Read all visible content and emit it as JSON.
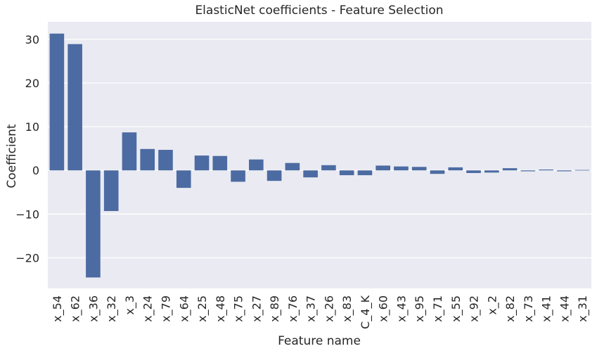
{
  "chart_data": {
    "type": "bar",
    "title": "ElasticNet coefficients - Feature Selection",
    "xlabel": "Feature name",
    "ylabel": "Coefficient",
    "ylim": [
      -27,
      34
    ],
    "yticks": [
      -20,
      -10,
      0,
      10,
      20,
      30
    ],
    "ytick_labels": [
      "−20",
      "−10",
      "0",
      "10",
      "20",
      "30"
    ],
    "grid": true,
    "categories": [
      "x_54",
      "x_62",
      "x_36",
      "x_32",
      "x_3",
      "x_24",
      "x_79",
      "x_64",
      "x_25",
      "x_48",
      "x_75",
      "x_27",
      "x_89",
      "x_76",
      "x_37",
      "x_26",
      "x_83",
      "C_4_K",
      "x_60",
      "x_43",
      "x_95",
      "x_71",
      "x_55",
      "x_92",
      "x_2",
      "x_82",
      "x_73",
      "x_41",
      "x_44",
      "x_31"
    ],
    "values": [
      31.3,
      28.9,
      -24.5,
      -9.3,
      8.7,
      4.9,
      4.7,
      -4.0,
      3.4,
      3.3,
      -2.6,
      2.5,
      -2.4,
      1.7,
      -1.6,
      1.2,
      -1.1,
      -1.1,
      1.1,
      0.9,
      0.8,
      -0.8,
      0.7,
      -0.6,
      -0.5,
      0.5,
      -0.2,
      0.2,
      -0.2,
      0.1
    ],
    "colors": {
      "bar": "#4c6ba2",
      "plot_background": "#eaeaf2",
      "grid": "#ffffff"
    }
  }
}
